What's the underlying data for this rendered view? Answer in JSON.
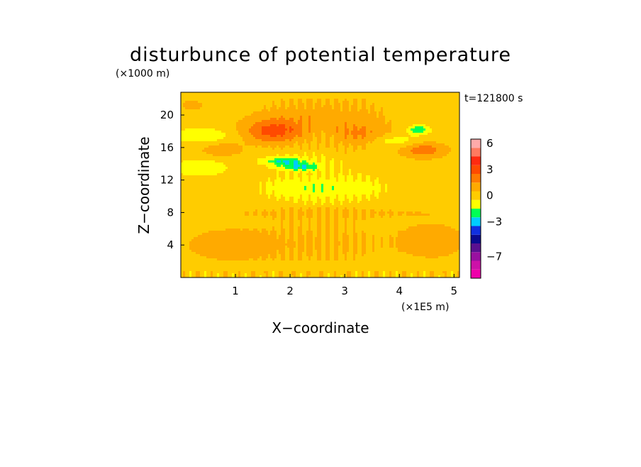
{
  "chart_data": {
    "type": "heatmap",
    "title": "disturbunce of potential temperature",
    "xlabel": "X−coordinate",
    "ylabel": "Z−coordinate",
    "x_unit": "(×1E5 m)",
    "y_unit": "(×1000 m)",
    "time_label": "t=121800 s",
    "xlim": [
      0,
      5.1
    ],
    "ylim": [
      0,
      22.8
    ],
    "x_ticks": [
      1,
      2,
      3,
      4,
      5
    ],
    "y_ticks": [
      4,
      8,
      12,
      16,
      20
    ],
    "grid": false,
    "colorbar": {
      "levels": [
        -9,
        -8,
        -7,
        -6,
        -5,
        -4,
        -3,
        -2,
        -1,
        0,
        1,
        2,
        3,
        4,
        5,
        6,
        7
      ],
      "colors": [
        "#ee00aa",
        "#cc11a8",
        "#9910a0",
        "#5a1090",
        "#0a0a90",
        "#1030e0",
        "#00ccff",
        "#00ff55",
        "#ffff00",
        "#ffcc00",
        "#ffaa00",
        "#ff7a00",
        "#ff4a00",
        "#ff2a10",
        "#ff7a60",
        "#ffaaaa"
      ],
      "tick_labels": [
        {
          "value": 6,
          "label": "6"
        },
        {
          "value": 3,
          "label": "3"
        },
        {
          "value": 0,
          "label": "0"
        },
        {
          "value": -3,
          "label": "−3"
        },
        {
          "value": -7,
          "label": "−7"
        }
      ]
    },
    "background_value": 0.5,
    "features": [
      {
        "x": 0.9,
        "z": 4.0,
        "sx": 0.9,
        "sz": 2.2,
        "v": 1.0
      },
      {
        "x": 4.6,
        "z": 4.5,
        "sx": 0.7,
        "sz": 2.4,
        "v": 1.0
      },
      {
        "x": 2.6,
        "z": 4.2,
        "sx": 1.1,
        "sz": 2.6,
        "v": 0.65
      },
      {
        "x": 2.6,
        "z": 8.0,
        "sx": 2.8,
        "sz": 0.9,
        "v": 0.6
      },
      {
        "x": 2.6,
        "z": 11.0,
        "sx": 1.2,
        "sz": 1.8,
        "v": -1.2
      },
      {
        "x": 0.35,
        "z": 13.5,
        "sx": 0.5,
        "sz": 1.0,
        "v": -1.3
      },
      {
        "x": 2.0,
        "z": 14.3,
        "sx": 0.6,
        "sz": 0.8,
        "v": -1.1
      },
      {
        "x": 3.9,
        "z": 16.8,
        "sx": 0.55,
        "sz": 0.8,
        "v": -1.2
      },
      {
        "x": 0.4,
        "z": 17.5,
        "sx": 0.55,
        "sz": 0.9,
        "v": -1.3
      },
      {
        "x": 2.2,
        "z": 13.6,
        "sx": 0.35,
        "sz": 0.45,
        "v": -2.2
      },
      {
        "x": 1.9,
        "z": 14.3,
        "sx": 0.3,
        "sz": 0.4,
        "v": -1.6
      },
      {
        "x": 4.35,
        "z": 18.2,
        "sx": 0.2,
        "sz": 0.55,
        "v": -2.4
      },
      {
        "x": 0.75,
        "z": 15.7,
        "sx": 0.35,
        "sz": 0.8,
        "v": 1.4
      },
      {
        "x": 4.45,
        "z": 15.7,
        "sx": 0.4,
        "sz": 1.0,
        "v": 2.2
      },
      {
        "x": 1.7,
        "z": 18.0,
        "sx": 0.55,
        "sz": 1.5,
        "v": 2.8
      },
      {
        "x": 3.3,
        "z": 17.5,
        "sx": 0.5,
        "sz": 1.5,
        "v": 1.6
      },
      {
        "x": 2.6,
        "z": 20.0,
        "sx": 1.2,
        "sz": 2.3,
        "v": 1.0
      },
      {
        "x": 0.2,
        "z": 21.2,
        "sx": 0.25,
        "sz": 0.8,
        "v": 0.8
      }
    ]
  }
}
